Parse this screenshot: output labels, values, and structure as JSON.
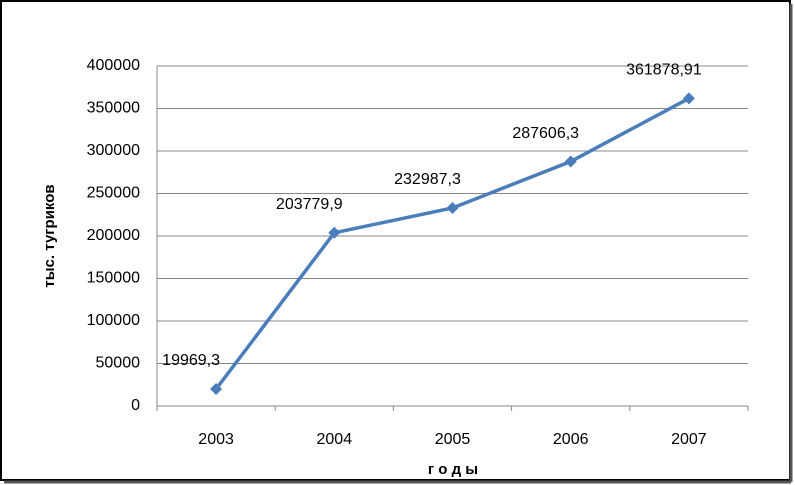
{
  "chart_data": {
    "type": "line",
    "categories": [
      "2003",
      "2004",
      "2005",
      "2006",
      "2007"
    ],
    "values": [
      19969.3,
      203779.9,
      232987.3,
      287606.3,
      361878.91
    ],
    "value_labels": [
      "19969,3",
      "203779,9",
      "232987,3",
      "287606,3",
      "361878,91"
    ],
    "color": "#4a7ebb",
    "ylim": [
      0,
      400000
    ],
    "yticks": [
      0,
      50000,
      100000,
      150000,
      200000,
      250000,
      300000,
      350000,
      400000
    ],
    "grid": true,
    "xlabel": "г о д ы",
    "ylabel": "тыс. тугриков"
  }
}
